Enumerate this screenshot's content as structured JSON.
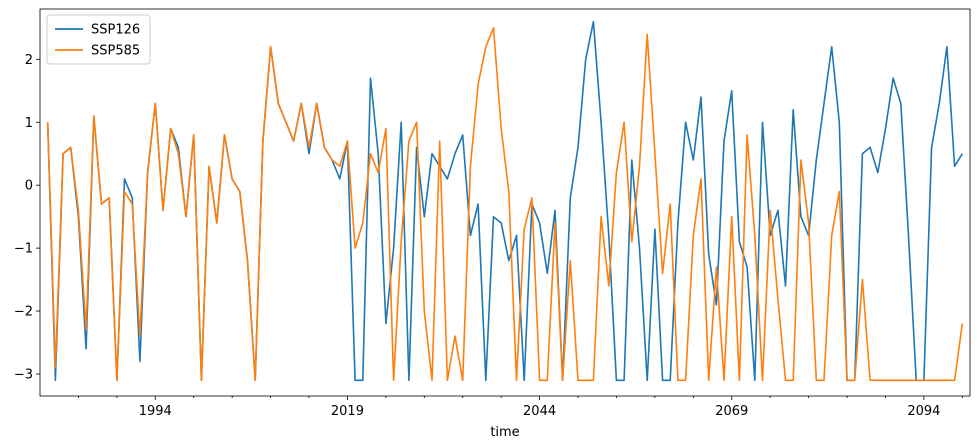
{
  "chart_data": {
    "type": "line",
    "title": "",
    "xlabel": "time",
    "ylabel": "",
    "xlim": [
      1979,
      2100
    ],
    "ylim": [
      -3.35,
      2.8
    ],
    "x_ticks": [
      1994,
      2019,
      2044,
      2069,
      2094
    ],
    "x_tick_labels": [
      "1994",
      "2019",
      "2044",
      "2069",
      "2094"
    ],
    "y_ticks": [
      -3,
      -2,
      -1,
      0,
      1,
      2
    ],
    "y_tick_labels": [
      "−3",
      "−2",
      "−1",
      "0",
      "1",
      "2"
    ],
    "legend_position": "top-left",
    "x": [
      1980,
      1981,
      1982,
      1983,
      1984,
      1985,
      1986,
      1987,
      1988,
      1989,
      1990,
      1991,
      1992,
      1993,
      1994,
      1995,
      1996,
      1997,
      1998,
      1999,
      2000,
      2001,
      2002,
      2003,
      2004,
      2005,
      2006,
      2007,
      2008,
      2009,
      2010,
      2011,
      2012,
      2013,
      2014,
      2015,
      2016,
      2017,
      2018,
      2019,
      2020,
      2021,
      2022,
      2023,
      2024,
      2025,
      2026,
      2027,
      2028,
      2029,
      2030,
      2031,
      2032,
      2033,
      2034,
      2035,
      2036,
      2037,
      2038,
      2039,
      2040,
      2041,
      2042,
      2043,
      2044,
      2045,
      2046,
      2047,
      2048,
      2049,
      2050,
      2051,
      2052,
      2053,
      2054,
      2055,
      2056,
      2057,
      2058,
      2059,
      2060,
      2061,
      2062,
      2063,
      2064,
      2065,
      2066,
      2067,
      2068,
      2069,
      2070,
      2071,
      2072,
      2073,
      2074,
      2075,
      2076,
      2077,
      2078,
      2079,
      2080,
      2081,
      2082,
      2083,
      2084,
      2085,
      2086,
      2087,
      2088,
      2089,
      2090,
      2091,
      2092,
      2093,
      2094,
      2095,
      2096,
      2097,
      2098,
      2099
    ],
    "series": [
      {
        "name": "SSP126",
        "color": "#1f77b4",
        "values": [
          1.0,
          -3.1,
          0.5,
          0.6,
          -0.5,
          -2.6,
          1.1,
          -0.3,
          -0.2,
          -3.1,
          0.1,
          -0.2,
          -2.8,
          0.2,
          1.3,
          -0.4,
          0.9,
          0.6,
          -0.5,
          0.8,
          -3.1,
          0.3,
          -0.6,
          0.8,
          0.1,
          -0.1,
          -1.2,
          -3.1,
          0.7,
          2.2,
          1.3,
          1.0,
          0.7,
          1.3,
          0.5,
          1.3,
          0.6,
          0.4,
          0.1,
          0.7,
          -3.1,
          -3.1,
          1.7,
          0.5,
          -2.2,
          -1.0,
          1.0,
          -3.1,
          0.6,
          -0.5,
          0.5,
          0.3,
          0.1,
          0.5,
          0.8,
          -0.8,
          -0.3,
          -3.1,
          -0.5,
          -0.6,
          -1.2,
          -0.8,
          -3.1,
          -0.3,
          -0.6,
          -1.4,
          -0.4,
          -3.1,
          -0.2,
          0.6,
          2.0,
          2.6,
          1.0,
          -0.8,
          -3.1,
          -3.1,
          0.4,
          -1.0,
          -3.1,
          -0.7,
          -3.1,
          -3.1,
          -0.6,
          1.0,
          0.4,
          1.4,
          -1.1,
          -1.9,
          0.7,
          1.5,
          -0.9,
          -1.3,
          -3.1,
          1.0,
          -0.8,
          -0.4,
          -1.6,
          1.2,
          -0.5,
          -0.8,
          0.4,
          1.3,
          2.2,
          1.0,
          -3.1,
          -3.1,
          0.5,
          0.6,
          0.2,
          0.9,
          1.7,
          1.3,
          -0.8,
          -3.1,
          -3.1,
          0.6,
          1.3,
          2.2,
          0.3,
          0.5
        ]
      },
      {
        "name": "SSP585",
        "color": "#ff7f0e",
        "values": [
          1.0,
          -2.9,
          0.5,
          0.6,
          -0.4,
          -2.3,
          1.1,
          -0.3,
          -0.2,
          -3.1,
          -0.1,
          -0.3,
          -2.4,
          0.2,
          1.3,
          -0.4,
          0.9,
          0.5,
          -0.5,
          0.8,
          -3.1,
          0.3,
          -0.6,
          0.8,
          0.1,
          -0.1,
          -1.2,
          -3.1,
          0.7,
          2.2,
          1.3,
          1.0,
          0.7,
          1.3,
          0.6,
          1.3,
          0.6,
          0.4,
          0.3,
          0.7,
          -1.0,
          -0.6,
          0.5,
          0.2,
          0.9,
          -3.1,
          -0.9,
          0.7,
          1.0,
          -2.0,
          -3.1,
          0.7,
          -3.1,
          -2.4,
          -3.1,
          0.3,
          1.6,
          2.2,
          2.5,
          0.9,
          -0.1,
          -3.1,
          -0.7,
          -0.2,
          -3.1,
          -3.1,
          -0.6,
          -3.1,
          -1.2,
          -3.1,
          -3.1,
          -3.1,
          -0.5,
          -1.6,
          0.2,
          1.0,
          -0.9,
          0.3,
          2.4,
          0.5,
          -1.4,
          -0.3,
          -3.1,
          -3.1,
          -0.8,
          0.1,
          -3.1,
          -1.3,
          -3.1,
          -0.5,
          -3.1,
          0.8,
          -0.8,
          -3.1,
          -0.4,
          -1.8,
          -3.1,
          -3.1,
          0.4,
          -0.6,
          -3.1,
          -3.1,
          -0.8,
          -0.1,
          -3.1,
          -3.1,
          -1.5,
          -3.1,
          -3.1,
          -3.1,
          -3.1,
          -3.1,
          -3.1,
          -3.1,
          -3.1,
          -3.1,
          -3.1,
          -3.1,
          -3.1,
          -2.2
        ]
      }
    ]
  }
}
